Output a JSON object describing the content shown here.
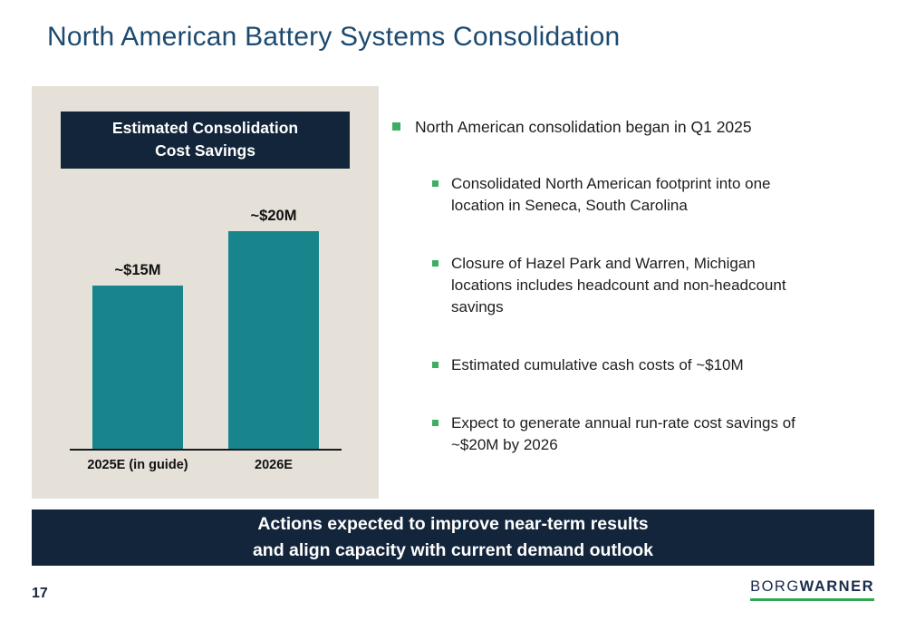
{
  "slide": {
    "title": "North American Battery Systems Consolidation",
    "page_number": "17",
    "footer_banner": "Actions expected to improve near-term results\nand align capacity with current demand outlook",
    "logo": {
      "part1": "BORG",
      "part2": "WARNER"
    }
  },
  "chart_panel": {
    "header_line1": "Estimated Consolidation",
    "header_line2": "Cost Savings"
  },
  "chart_data": {
    "type": "bar",
    "title": "Estimated Consolidation Cost Savings",
    "categories": [
      "2025E (in guide)",
      "2026E"
    ],
    "values": [
      15,
      20
    ],
    "value_labels": [
      "~$15M",
      "~$20M"
    ],
    "unit": "USD millions",
    "ylim": [
      0,
      22
    ],
    "bar_color": "#17858B",
    "grid": false,
    "legend": false
  },
  "bullets": {
    "main": "North American consolidation began in Q1 2025",
    "sub": [
      "Consolidated North American footprint into one\nlocation in Seneca, South Carolina",
      "Closure of Hazel Park and Warren, Michigan\nlocations includes headcount and non-headcount\nsavings",
      "Estimated cumulative cash costs of ~$10M",
      "Expect to generate annual run-rate cost savings of\n~$20M by 2026"
    ]
  },
  "colors": {
    "title_blue": "#1C4A70",
    "navy": "#13253B",
    "teal": "#17858B",
    "accent_green": "#3EAE62",
    "panel_bg": "#E5E1D8"
  }
}
